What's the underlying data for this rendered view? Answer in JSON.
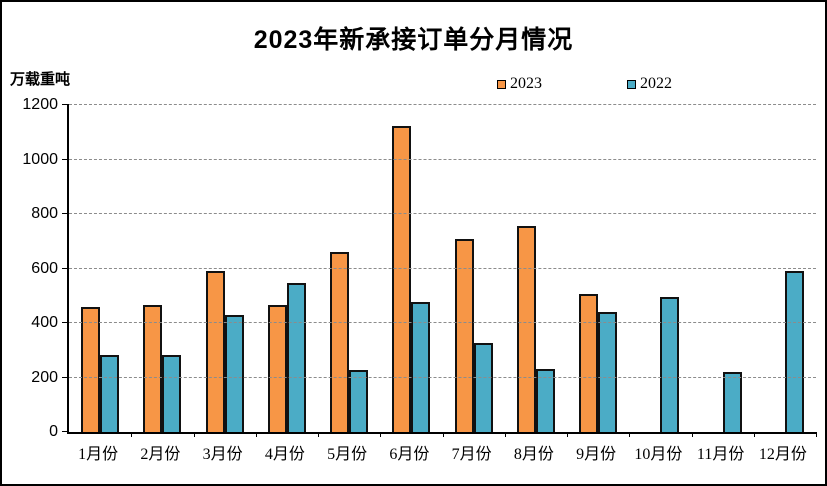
{
  "title": "2023年新承接订单分月情况",
  "y_axis_unit": "万载重吨",
  "legend": [
    {
      "label": "2023",
      "color": "#F79646"
    },
    {
      "label": "2022",
      "color": "#4BACC6"
    }
  ],
  "colors": {
    "bar_2023": "#F79646",
    "bar_2022": "#4BACC6",
    "bar_border": "#111111",
    "gridline": "#8c8c8c",
    "axis": "#000000"
  },
  "chart_data": {
    "type": "bar",
    "title": "2023年新承接订单分月情况",
    "xlabel": "",
    "ylabel": "万载重吨",
    "categories": [
      "1月份",
      "2月份",
      "3月份",
      "4月份",
      "5月份",
      "6月份",
      "7月份",
      "8月份",
      "9月份",
      "10月份",
      "11月份",
      "12月份"
    ],
    "series": [
      {
        "name": "2023",
        "color": "#F79646",
        "values": [
          460,
          465,
          592,
          466,
          660,
          1122,
          708,
          755,
          505,
          null,
          null,
          null
        ]
      },
      {
        "name": "2022",
        "color": "#4BACC6",
        "values": [
          284,
          283,
          430,
          547,
          229,
          476,
          327,
          231,
          440,
          494,
          221,
          590
        ]
      }
    ],
    "ylim": [
      0,
      1200
    ],
    "yticks": [
      0,
      200,
      400,
      600,
      800,
      1000,
      1200
    ],
    "grid": "horizontal-dashed",
    "legend_position": "top-center"
  }
}
